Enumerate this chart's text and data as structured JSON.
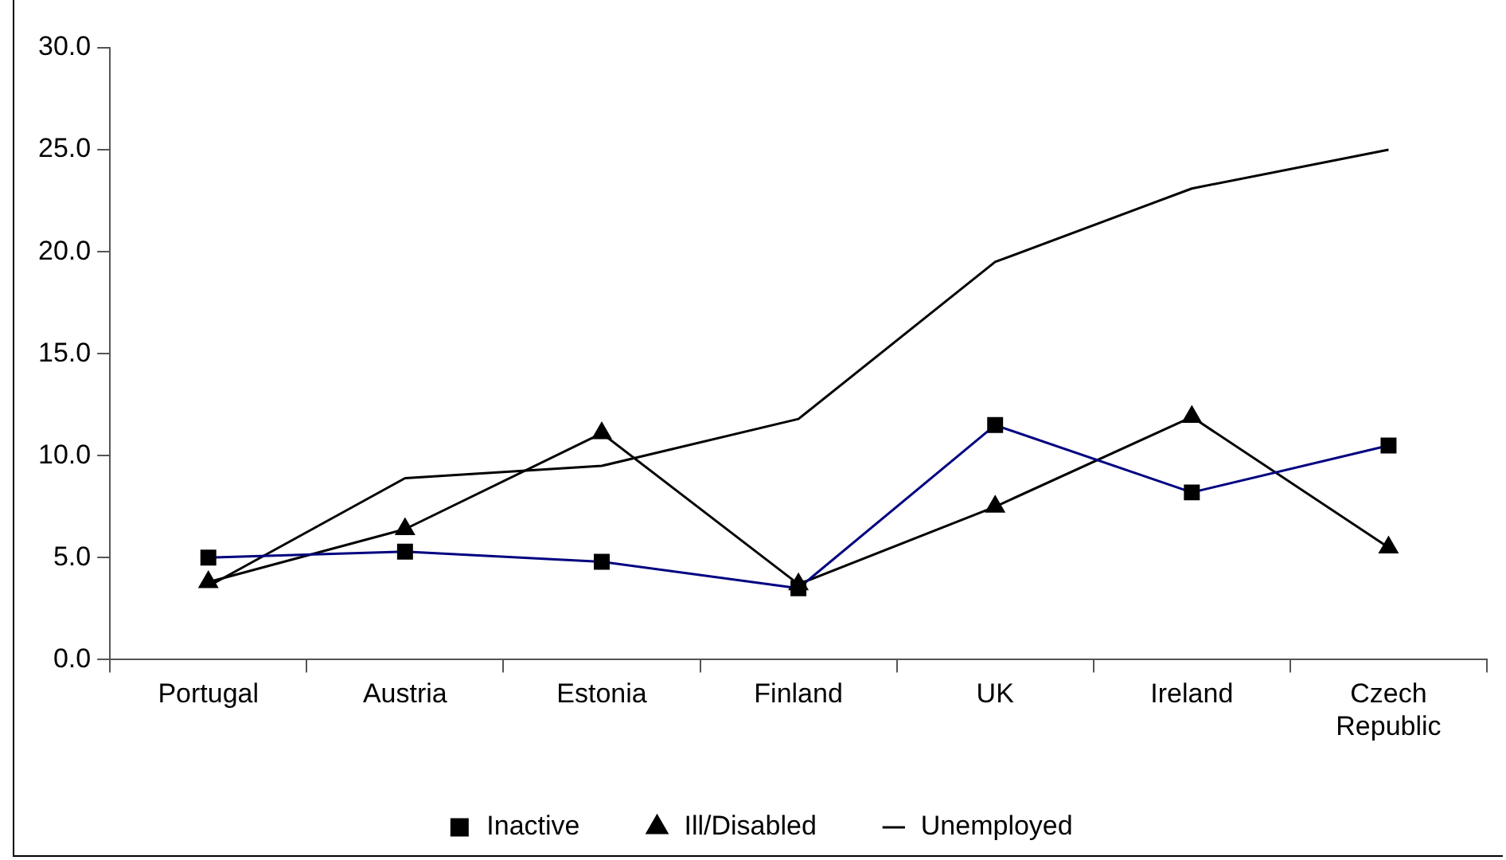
{
  "chart_data": {
    "type": "line",
    "categories": [
      "Portugal",
      "Austria",
      "Estonia",
      "Finland",
      "UK",
      "Ireland",
      "Czech Republic"
    ],
    "series": [
      {
        "name": "Inactive",
        "color": "#000080",
        "marker": "square",
        "values": [
          5.0,
          5.3,
          4.8,
          3.5,
          11.5,
          8.2,
          10.5
        ]
      },
      {
        "name": "Ill/Disabled",
        "color": "#000000",
        "marker": "triangle",
        "values": [
          3.8,
          6.4,
          11.1,
          3.7,
          7.5,
          11.9,
          5.5
        ]
      },
      {
        "name": "Unemployed",
        "color": "#000000",
        "marker": "none",
        "values": [
          3.6,
          8.9,
          9.5,
          11.8,
          19.5,
          23.1,
          25.0
        ]
      }
    ],
    "ylim": [
      0,
      30
    ],
    "yticks": [
      {
        "value": 0,
        "label": "0.0"
      },
      {
        "value": 5,
        "label": "5.0"
      },
      {
        "value": 10,
        "label": "10.0"
      },
      {
        "value": 15,
        "label": "15.0"
      },
      {
        "value": 20,
        "label": "20.0"
      },
      {
        "value": 25,
        "label": "25.0"
      },
      {
        "value": 30,
        "label": "30.0"
      }
    ],
    "grid": false,
    "legend": "bottom"
  }
}
